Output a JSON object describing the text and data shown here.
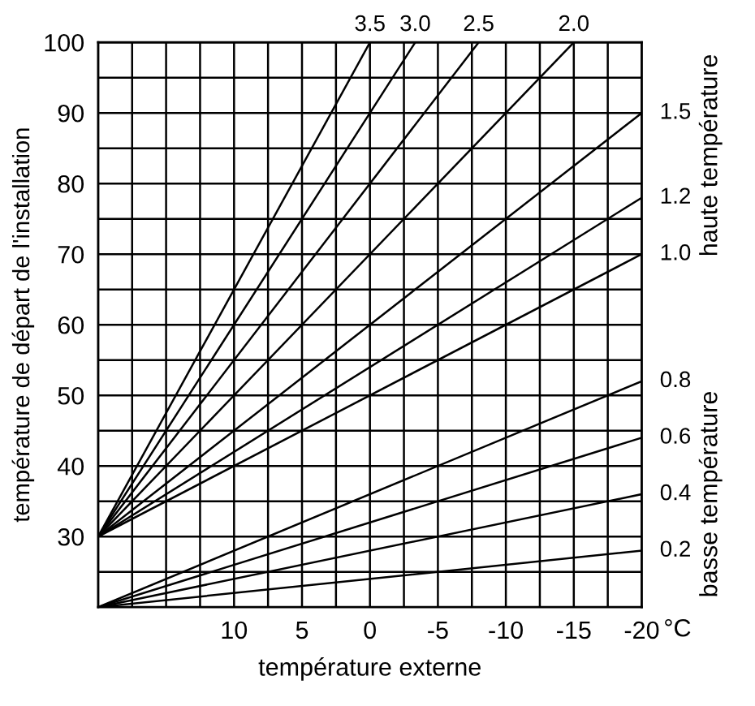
{
  "chart_data": {
    "type": "line",
    "xlabel": "température externe",
    "ylabel": "température de départ de l'installation",
    "annotations": [
      "°C",
      "haute température",
      "basse température"
    ],
    "series": [
      {
        "name": "3.5",
        "color": "#000000",
        "x": [
          20,
          0
        ],
        "values": [
          30,
          100
        ]
      },
      {
        "name": "3.0",
        "color": "#000000",
        "x": [
          20,
          -3.33
        ],
        "values": [
          30,
          100
        ]
      },
      {
        "name": "2.5",
        "color": "#000000",
        "x": [
          20,
          -8
        ],
        "values": [
          30,
          100
        ]
      },
      {
        "name": "2.0",
        "color": "#000000",
        "x": [
          20,
          -15
        ],
        "values": [
          30,
          100
        ]
      },
      {
        "name": "1.5",
        "color": "#000000",
        "x": [
          20,
          -20
        ],
        "values": [
          30,
          90
        ]
      },
      {
        "name": "1.2",
        "color": "#000000",
        "x": [
          20,
          -20
        ],
        "values": [
          30,
          78
        ]
      },
      {
        "name": "1.0",
        "color": "#000000",
        "x": [
          20,
          -20
        ],
        "values": [
          30,
          70
        ]
      },
      {
        "name": "0.8",
        "color": "#000000",
        "x": [
          20,
          -20
        ],
        "values": [
          20,
          52
        ]
      },
      {
        "name": "0.6",
        "color": "#000000",
        "x": [
          20,
          -20
        ],
        "values": [
          20,
          44
        ]
      },
      {
        "name": "0.4",
        "color": "#000000",
        "x": [
          20,
          -20
        ],
        "values": [
          20,
          36
        ]
      },
      {
        "name": "0.2",
        "color": "#000000",
        "x": [
          20,
          -20
        ],
        "values": [
          20,
          28
        ]
      }
    ],
    "xlim": [
      20,
      -20
    ],
    "xticks": [
      {
        "value": 20,
        "label": null
      },
      {
        "value": 17.5,
        "label": null
      },
      {
        "value": 15,
        "label": null
      },
      {
        "value": 12.5,
        "label": null
      },
      10,
      {
        "value": 7.5,
        "label": null
      },
      5,
      {
        "value": 2.5,
        "label": null
      },
      0,
      {
        "value": -2.5,
        "label": null
      },
      -5,
      {
        "value": -7.5,
        "label": null
      },
      -10,
      {
        "value": -12.5,
        "label": null
      },
      -15,
      {
        "value": -17.5,
        "label": null
      },
      -20
    ],
    "ylim": [
      20,
      100
    ],
    "yticks": [
      {
        "value": 20,
        "label": null
      },
      {
        "value": 25,
        "label": null
      },
      30,
      {
        "value": 35,
        "label": null
      },
      40,
      {
        "value": 45,
        "label": null
      },
      50,
      {
        "value": 55,
        "label": null
      },
      60,
      {
        "value": 65,
        "label": null
      },
      70,
      {
        "value": 75,
        "label": null
      },
      80,
      {
        "value": 85,
        "label": null
      },
      90,
      {
        "value": 95,
        "label": null
      },
      100
    ],
    "grid": true,
    "legend": false,
    "line_style": "solid"
  }
}
